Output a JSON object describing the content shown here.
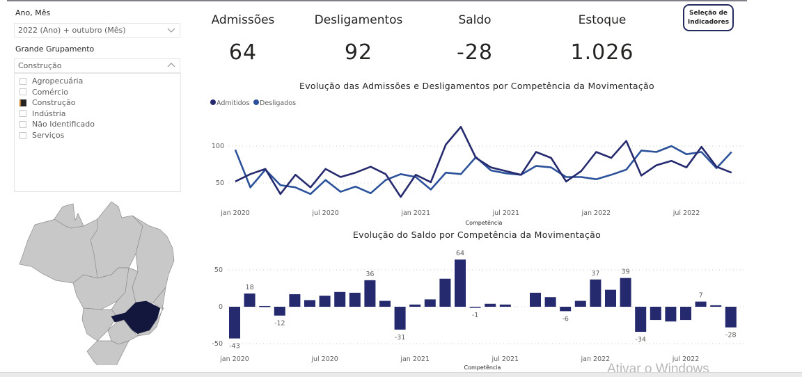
{
  "filters": {
    "period": {
      "label": "Ano, Mês",
      "value": "2022 (Ano) + outubro (Mês)"
    },
    "group": {
      "label": "Grande Grupamento",
      "value": "Construção",
      "options": [
        {
          "label": "Agropecuária",
          "checked": false
        },
        {
          "label": "Comércio",
          "checked": false
        },
        {
          "label": "Construção",
          "checked": true
        },
        {
          "label": "Indústria",
          "checked": false
        },
        {
          "label": "Não Identificado",
          "checked": false
        },
        {
          "label": "Serviços",
          "checked": false
        }
      ]
    }
  },
  "kpis": [
    {
      "label": "Admissões",
      "value": "64"
    },
    {
      "label": "Desligamentos",
      "value": "92"
    },
    {
      "label": "Saldo",
      "value": "-28"
    },
    {
      "label": "Estoque",
      "value": "1.026"
    }
  ],
  "indicator_button": {
    "line1": "Seleção de",
    "line2": "Indicadores"
  },
  "map": {
    "highlighted_state": "Minas Gerais",
    "highlight_color": "#13173d",
    "base_color": "#c8c8c8"
  },
  "watermark": "Ativar o Windows",
  "chart_data": [
    {
      "type": "line",
      "title": "Evolução das Admissões e Desligamentos por Competência da Movimentação",
      "xlabel": "Competência",
      "ylabel": "",
      "ylim": [
        20,
        130
      ],
      "yticks": [
        50,
        100
      ],
      "grid": true,
      "legend": "top-left",
      "x": [
        "jan 2020",
        "fev 2020",
        "mar 2020",
        "abr 2020",
        "mai 2020",
        "jun 2020",
        "jul 2020",
        "ago 2020",
        "set 2020",
        "out 2020",
        "nov 2020",
        "dez 2020",
        "jan 2021",
        "fev 2021",
        "mar 2021",
        "abr 2021",
        "mai 2021",
        "jun 2021",
        "jul 2021",
        "ago 2021",
        "set 2021",
        "out 2021",
        "nov 2021",
        "dez 2021",
        "jan 2022",
        "fev 2022",
        "mar 2022",
        "abr 2022",
        "mai 2022",
        "jun 2022",
        "jul 2022",
        "ago 2022",
        "set 2022",
        "out 2022"
      ],
      "xticks": [
        {
          "index": 0,
          "label": "jan 2020"
        },
        {
          "index": 6,
          "label": "jul 2020"
        },
        {
          "index": 12,
          "label": "jan 2021"
        },
        {
          "index": 18,
          "label": "jul 2021"
        },
        {
          "index": 24,
          "label": "jan 2022"
        },
        {
          "index": 30,
          "label": "jul 2022"
        }
      ],
      "series": [
        {
          "name": "Admitidos",
          "color": "#252a6e",
          "values": [
            52,
            62,
            69,
            35,
            61,
            44,
            69,
            58,
            64,
            72,
            62,
            31,
            61,
            51,
            102,
            126,
            84,
            71,
            66,
            61,
            92,
            84,
            52,
            66,
            92,
            84,
            107,
            60,
            74,
            80,
            71,
            99,
            72,
            64
          ]
        },
        {
          "name": "Desligados",
          "color": "#2b519a",
          "values": [
            95,
            44,
            68,
            47,
            44,
            35,
            54,
            38,
            45,
            36,
            54,
            62,
            58,
            41,
            64,
            62,
            85,
            67,
            63,
            61,
            73,
            71,
            58,
            58,
            55,
            61,
            68,
            94,
            92,
            100,
            89,
            92,
            70,
            92
          ]
        }
      ]
    },
    {
      "type": "bar",
      "title": "Evolução do Saldo por Competência da Movimentação",
      "xlabel": "Competência",
      "ylabel": "",
      "ylim": [
        -50,
        70
      ],
      "yticks": [
        -50,
        0,
        50
      ],
      "grid": true,
      "color": "#252a6e",
      "categories": [
        "jan 2020",
        "fev 2020",
        "mar 2020",
        "abr 2020",
        "mai 2020",
        "jun 2020",
        "jul 2020",
        "ago 2020",
        "set 2020",
        "out 2020",
        "nov 2020",
        "dez 2020",
        "jan 2021",
        "fev 2021",
        "mar 2021",
        "abr 2021",
        "mai 2021",
        "jun 2021",
        "jul 2021",
        "ago 2021",
        "set 2021",
        "out 2021",
        "nov 2021",
        "dez 2021",
        "jan 2022",
        "fev 2022",
        "mar 2022",
        "abr 2022",
        "mai 2022",
        "jun 2022",
        "jul 2022",
        "ago 2022",
        "set 2022",
        "out 2022"
      ],
      "xticks": [
        {
          "index": 0,
          "label": "jan 2020"
        },
        {
          "index": 6,
          "label": "jul 2020"
        },
        {
          "index": 12,
          "label": "jan 2021"
        },
        {
          "index": 18,
          "label": "jul 2021"
        },
        {
          "index": 24,
          "label": "jan 2022"
        },
        {
          "index": 30,
          "label": "jul 2022"
        }
      ],
      "values": [
        -43,
        18,
        1,
        -12,
        17,
        9,
        15,
        20,
        19,
        36,
        8,
        -31,
        3,
        10,
        38,
        64,
        -1,
        4,
        3,
        0,
        19,
        13,
        -6,
        8,
        37,
        23,
        39,
        -34,
        -18,
        -20,
        -18,
        7,
        2,
        -28
      ],
      "data_labels": [
        {
          "index": 0,
          "label": "-43"
        },
        {
          "index": 1,
          "label": "18"
        },
        {
          "index": 3,
          "label": "-12"
        },
        {
          "index": 9,
          "label": "36"
        },
        {
          "index": 11,
          "label": "-31"
        },
        {
          "index": 15,
          "label": "64"
        },
        {
          "index": 16,
          "label": "-1"
        },
        {
          "index": 22,
          "label": "-6"
        },
        {
          "index": 24,
          "label": "37"
        },
        {
          "index": 26,
          "label": "39"
        },
        {
          "index": 27,
          "label": "-34"
        },
        {
          "index": 31,
          "label": "7"
        },
        {
          "index": 33,
          "label": "-28"
        }
      ]
    }
  ]
}
